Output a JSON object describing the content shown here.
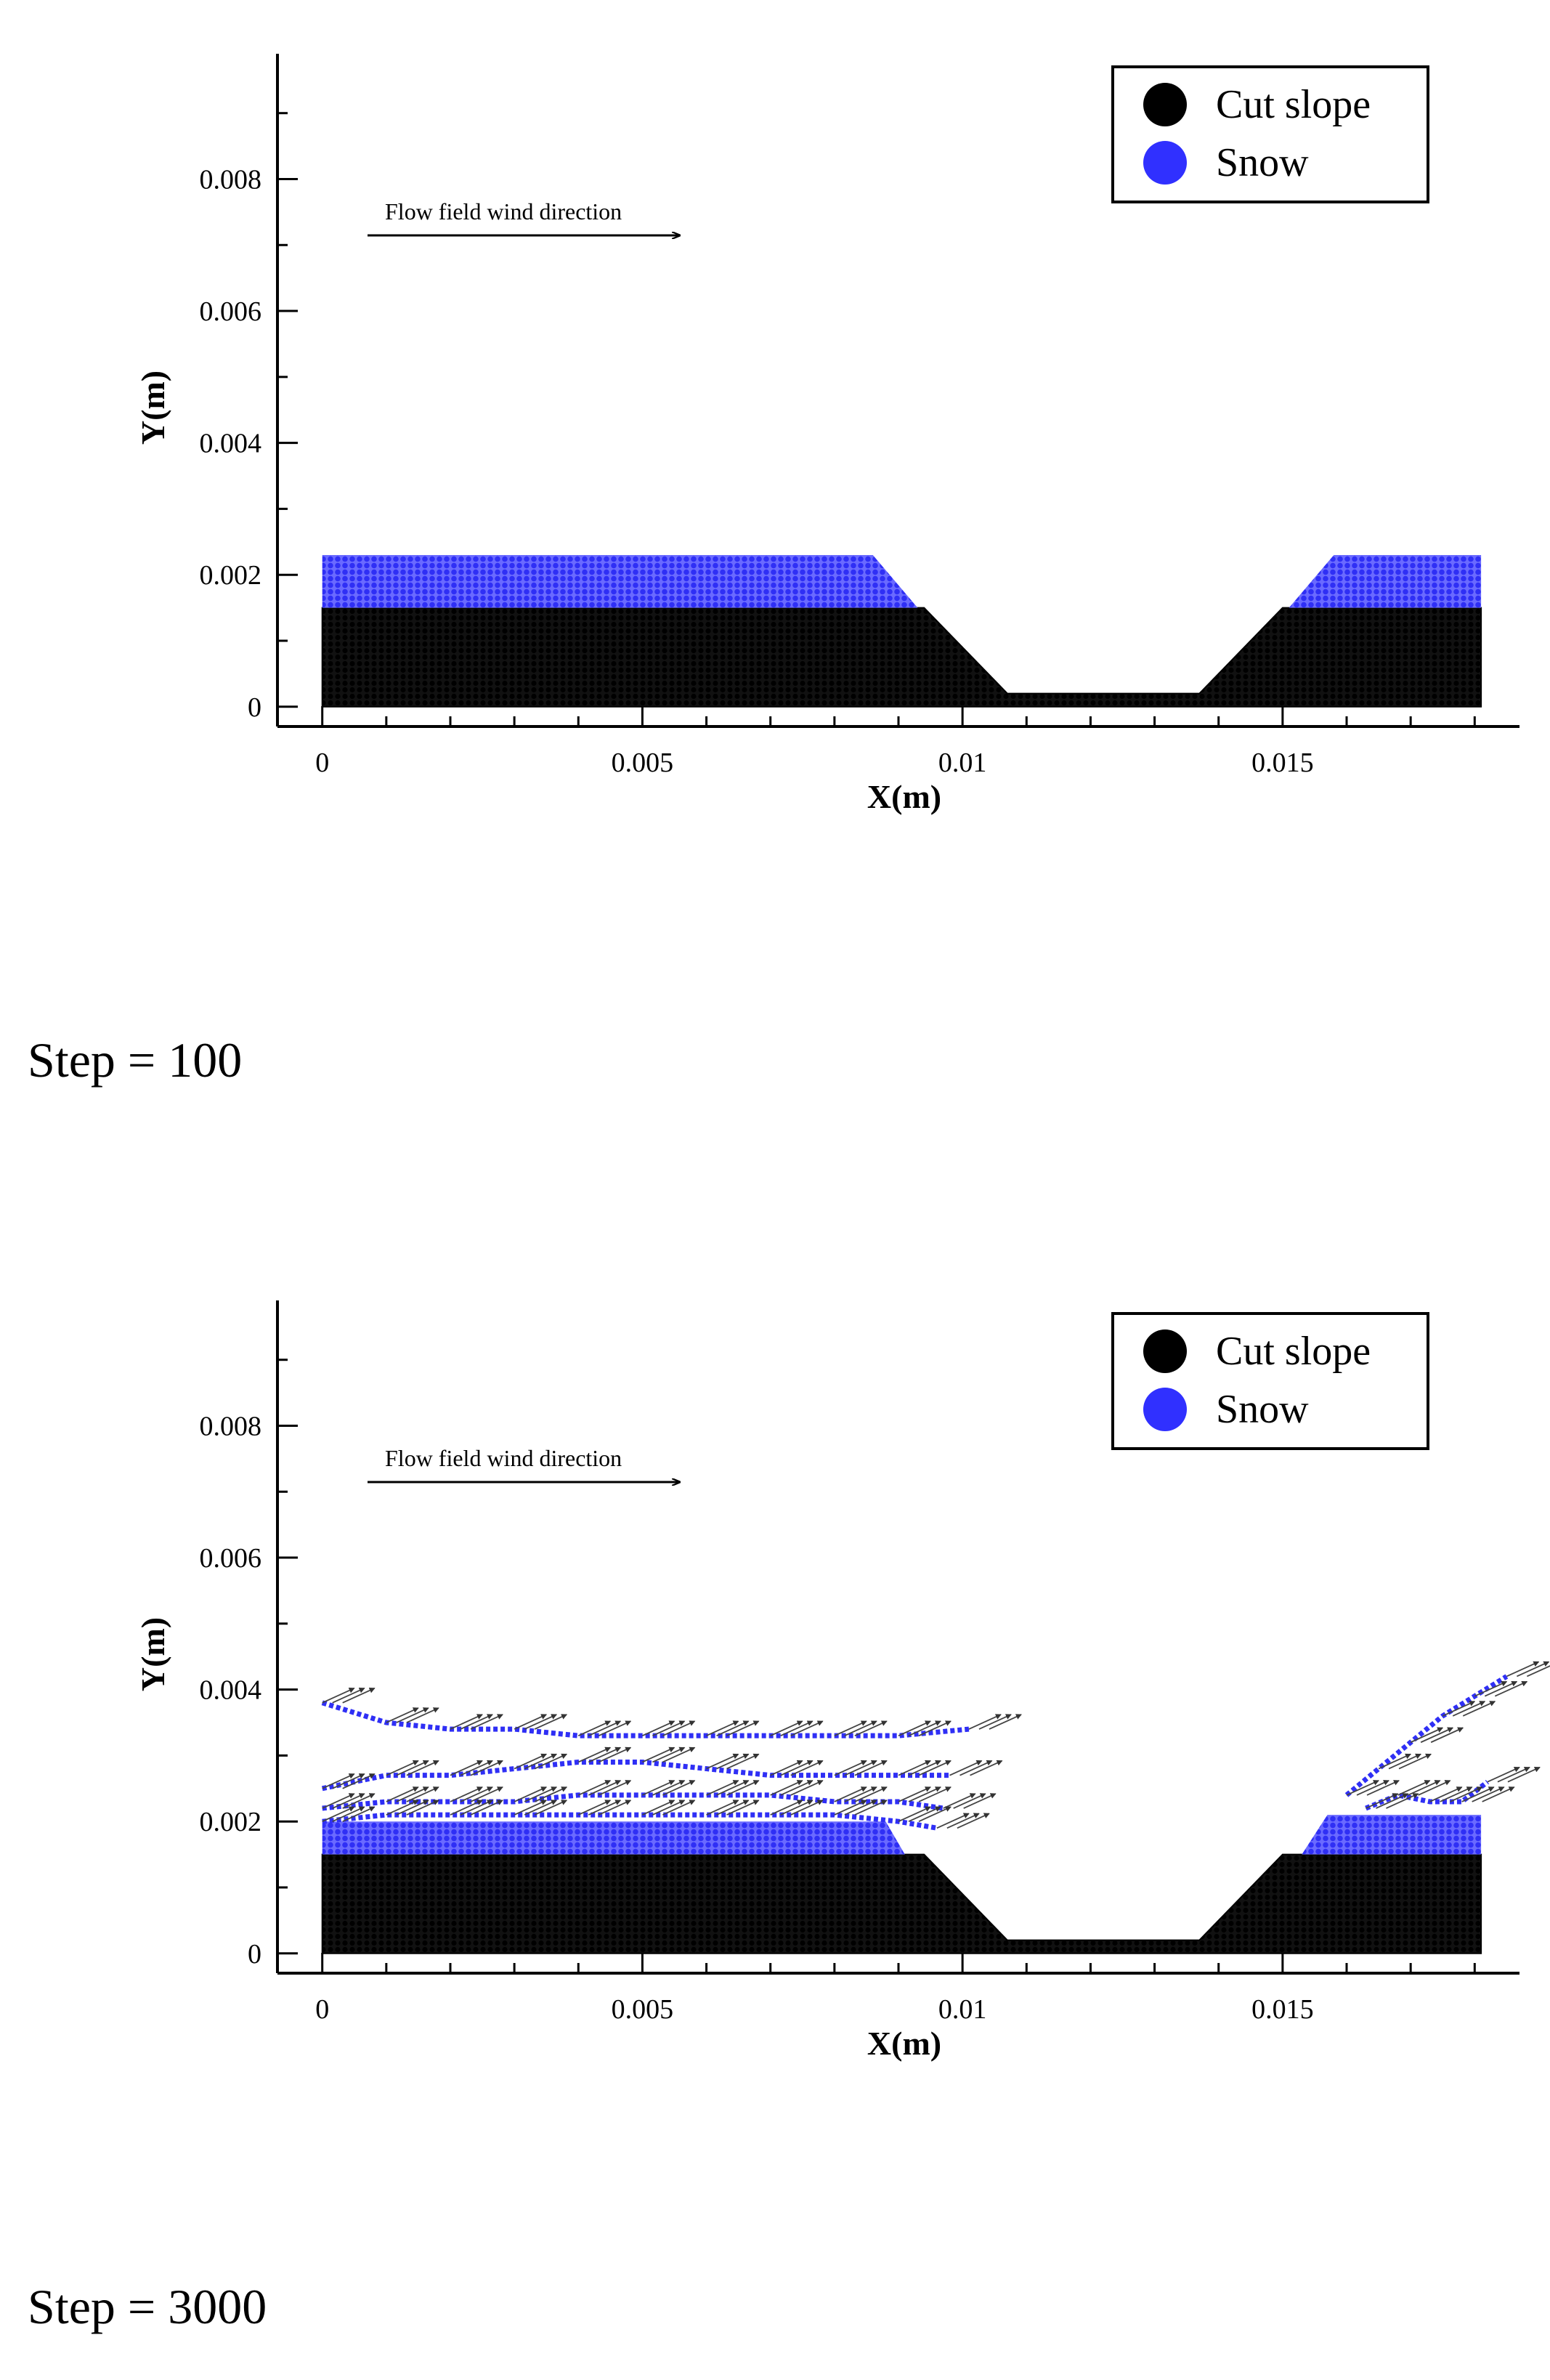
{
  "chart_data": [
    {
      "type": "scatter",
      "panel_label": "Step = 100",
      "xlabel": "X(m)",
      "ylabel": "Y(m)",
      "xlim": [
        -0.0007,
        0.0187
      ],
      "ylim": [
        -0.0003,
        0.0099
      ],
      "xticks": [
        0,
        0.005,
        0.01,
        0.015
      ],
      "xtick_labels": [
        "0",
        "0.005",
        "0.01",
        "0.015"
      ],
      "yticks": [
        0,
        0.002,
        0.004,
        0.006,
        0.008
      ],
      "ytick_labels": [
        "0",
        "0.002",
        "0.004",
        "0.006",
        "0.008"
      ],
      "annotation": "Flow field wind direction",
      "legend": {
        "placement": "top-right",
        "entries": [
          {
            "label": "Cut slope",
            "color": "#000000"
          },
          {
            "label": "Snow",
            "color": "#3030ff"
          }
        ]
      },
      "series": [
        {
          "name": "Cut slope",
          "color": "#000000",
          "profile_x": [
            0,
            0.0094,
            0.0107,
            0.0137,
            0.015,
            0.0181
          ],
          "profile_y": [
            0.0015,
            0.0015,
            0.0002,
            0.0002,
            0.0015,
            0.0015
          ]
        },
        {
          "name": "Snow",
          "color": "#3030ff",
          "regions": [
            {
              "x": [
                0,
                0.0086,
                0.0093,
                0
              ],
              "y": [
                0.0023,
                0.0023,
                0.0015,
                0.0015
              ]
            },
            {
              "x": [
                0.0158,
                0.0181,
                0.0181,
                0.0151
              ],
              "y": [
                0.0023,
                0.0023,
                0.0015,
                0.0015
              ]
            }
          ]
        }
      ]
    },
    {
      "type": "scatter",
      "panel_label": "Step = 3000",
      "xlabel": "X(m)",
      "ylabel": "Y(m)",
      "xlim": [
        -0.0007,
        0.0187
      ],
      "ylim": [
        -0.0003,
        0.0099
      ],
      "xticks": [
        0,
        0.005,
        0.01,
        0.015
      ],
      "xtick_labels": [
        "0",
        "0.005",
        "0.01",
        "0.015"
      ],
      "yticks": [
        0,
        0.002,
        0.004,
        0.006,
        0.008
      ],
      "ytick_labels": [
        "0",
        "0.002",
        "0.004",
        "0.006",
        "0.008"
      ],
      "annotation": "Flow field wind direction",
      "legend": {
        "placement": "top-right",
        "entries": [
          {
            "label": "Cut slope",
            "color": "#000000"
          },
          {
            "label": "Snow",
            "color": "#3030ff"
          }
        ]
      },
      "series": [
        {
          "name": "Cut slope",
          "color": "#000000",
          "profile_x": [
            0,
            0.0094,
            0.0107,
            0.0137,
            0.015,
            0.0181
          ],
          "profile_y": [
            0.0015,
            0.0015,
            0.0002,
            0.0002,
            0.0015,
            0.0015
          ]
        },
        {
          "name": "Snow",
          "color": "#3030ff",
          "regions": [
            {
              "x": [
                0,
                0.0088,
                0.0091,
                0
              ],
              "y": [
                0.002,
                0.002,
                0.0015,
                0.0015
              ]
            },
            {
              "x": [
                0.0157,
                0.0181,
                0.0181,
                0.0153
              ],
              "y": [
                0.0021,
                0.0021,
                0.0015,
                0.0015
              ]
            }
          ],
          "streaks": [
            {
              "x": [
                0,
                0.001,
                0.002,
                0.003,
                0.004,
                0.005,
                0.006,
                0.007,
                0.008,
                0.009,
                0.0101
              ],
              "y": [
                0.0038,
                0.0035,
                0.0034,
                0.0034,
                0.0033,
                0.0033,
                0.0033,
                0.0033,
                0.0033,
                0.0033,
                0.0034
              ]
            },
            {
              "x": [
                0,
                0.001,
                0.002,
                0.003,
                0.004,
                0.005,
                0.006,
                0.007,
                0.008,
                0.009,
                0.0098
              ],
              "y": [
                0.0025,
                0.0027,
                0.0027,
                0.0028,
                0.0029,
                0.0029,
                0.0028,
                0.0027,
                0.0027,
                0.0027,
                0.0027
              ]
            },
            {
              "x": [
                0,
                0.001,
                0.002,
                0.003,
                0.004,
                0.005,
                0.006,
                0.007,
                0.008,
                0.009,
                0.0097
              ],
              "y": [
                0.0022,
                0.0023,
                0.0023,
                0.0023,
                0.0024,
                0.0024,
                0.0024,
                0.0024,
                0.0023,
                0.0023,
                0.0022
              ]
            },
            {
              "x": [
                0,
                0.001,
                0.002,
                0.003,
                0.004,
                0.005,
                0.006,
                0.007,
                0.008,
                0.009,
                0.0096
              ],
              "y": [
                0.002,
                0.0021,
                0.0021,
                0.0021,
                0.0021,
                0.0021,
                0.0021,
                0.0021,
                0.0021,
                0.002,
                0.0019
              ]
            },
            {
              "x": [
                0.016,
                0.0165,
                0.017,
                0.0175,
                0.018,
                0.0185
              ],
              "y": [
                0.0024,
                0.0028,
                0.0032,
                0.0036,
                0.0039,
                0.0042
              ]
            },
            {
              "x": [
                0.0163,
                0.0168,
                0.0173,
                0.0178,
                0.0182
              ],
              "y": [
                0.0022,
                0.0024,
                0.0023,
                0.0023,
                0.0026
              ]
            }
          ]
        }
      ]
    }
  ]
}
